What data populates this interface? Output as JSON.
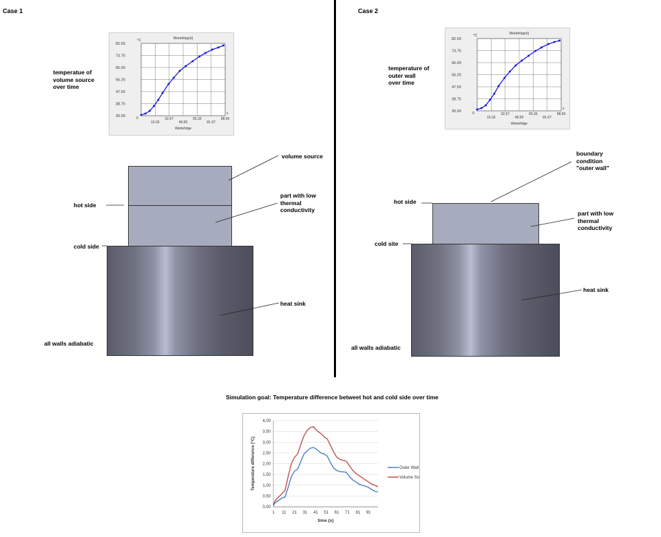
{
  "case1": {
    "title": "Case 1",
    "profile_label": [
      "temperatue of",
      "volume source",
      "over time"
    ],
    "labels": {
      "volume_source": "volume source",
      "low_cond": [
        "part with low",
        "thermal",
        "conductivity"
      ],
      "hot_side": "hot side",
      "cold_side": "cold side",
      "heat_sink": "heat sink",
      "adiabatic": "all walls adiabatic"
    },
    "mini_chart": {
      "unit": "°C",
      "title": "Wertefolge(t)",
      "xlabel": "Wertefolge",
      "yticks": [
        "30.00",
        "38.75",
        "47.50",
        "56.25",
        "65.00",
        "73.75",
        "82.50"
      ],
      "xticks_upper": [
        "32.67",
        "65.33",
        "98.00"
      ],
      "xticks_lower": [
        "16.33",
        "49.00",
        "81.67"
      ],
      "x_zero": "0",
      "x_axis_end": "x"
    }
  },
  "case2": {
    "title": "Case 2",
    "profile_label": [
      "temperature of",
      "outer wall",
      "over time"
    ],
    "labels": {
      "boundary": [
        "boundary",
        "condition",
        "\"outer wall\""
      ],
      "low_cond": [
        "part with low",
        "thermal",
        "conductivity"
      ],
      "hot_side": "hot side",
      "cold_side": "cold site",
      "heat_sink": "heat sink",
      "adiabatic": "all walls adiabatic"
    },
    "mini_chart": {
      "unit": "°C",
      "title": "Wertefolge(t)",
      "xlabel": "Wertefolge",
      "yticks": [
        "30.00",
        "38.75",
        "47.50",
        "56.25",
        "65.00",
        "73.75",
        "82.50"
      ],
      "xticks_upper": [
        "32.67",
        "65.33",
        "98.00"
      ],
      "xticks_lower": [
        "16.33",
        "49.00",
        "81.67"
      ],
      "x_zero": "0",
      "x_axis_end": "x"
    }
  },
  "goal_title": "Simulation goal: Temperature difference betweet hot and cold side over time",
  "colors": {
    "mini_line": "#1a1adb",
    "outer_wall": "#4a7fc0",
    "volume_source": "#c0504d",
    "sink_mid": "#b9bdd2",
    "light_block": "#a7abbe"
  },
  "chart_data": [
    {
      "type": "line",
      "title": "Wertefolge(t)",
      "xlabel": "Wertefolge",
      "ylabel": "°C",
      "xlim": [
        0,
        98
      ],
      "ylim": [
        30,
        82.5
      ],
      "series": [
        {
          "x": [
            0,
            5,
            10,
            15,
            20,
            25,
            32,
            38,
            45,
            52,
            60,
            68,
            75,
            83,
            90,
            96
          ],
          "y": [
            30.5,
            31.5,
            33.5,
            37,
            41.5,
            46.5,
            53,
            57.5,
            62.5,
            66,
            69.5,
            73,
            75.5,
            78,
            79.5,
            81
          ]
        }
      ],
      "grid": true
    },
    {
      "type": "line",
      "title": "Wertefolge(t)",
      "xlabel": "Wertefolge",
      "ylabel": "°C",
      "xlim": [
        0,
        98
      ],
      "ylim": [
        30,
        82.5
      ],
      "series": [
        {
          "x": [
            0,
            5,
            10,
            15,
            20,
            25,
            32,
            38,
            45,
            52,
            60,
            68,
            75,
            83,
            90,
            96
          ],
          "y": [
            31,
            32,
            34,
            38,
            42.5,
            48,
            54,
            58.5,
            63,
            66.5,
            70,
            73.5,
            76,
            78.5,
            80,
            81
          ]
        }
      ],
      "grid": true
    },
    {
      "type": "line",
      "xlabel": "time (s)",
      "ylabel": "Temperature difference (°C)",
      "yticks": [
        "0,00",
        "0,50",
        "1,00",
        "1,50",
        "2,00",
        "2,50",
        "3,00",
        "3,50",
        "4,00"
      ],
      "xticks": [
        "1",
        "11",
        "21",
        "31",
        "41",
        "51",
        "61",
        "71",
        "81",
        "91"
      ],
      "xlim": [
        1,
        100
      ],
      "ylim": [
        0,
        4
      ],
      "legend": "right",
      "grid": true,
      "series": [
        {
          "name": "Outer Wall",
          "x": [
            1,
            3,
            6,
            9,
            12,
            15,
            18,
            21,
            24,
            27,
            30,
            33,
            36,
            39,
            41,
            43,
            46,
            49,
            52,
            55,
            58,
            61,
            64,
            67,
            70,
            73,
            76,
            79,
            82,
            85,
            88,
            91,
            94,
            97,
            100
          ],
          "y": [
            0.05,
            0.2,
            0.3,
            0.4,
            0.45,
            0.9,
            1.4,
            1.65,
            1.75,
            2.1,
            2.45,
            2.6,
            2.72,
            2.75,
            2.7,
            2.62,
            2.5,
            2.45,
            2.35,
            2.05,
            1.8,
            1.68,
            1.63,
            1.62,
            1.6,
            1.4,
            1.25,
            1.15,
            1.05,
            1.0,
            0.95,
            0.9,
            0.8,
            0.72,
            0.68
          ]
        },
        {
          "name": "Volume Source",
          "x": [
            1,
            3,
            6,
            9,
            12,
            15,
            18,
            21,
            24,
            27,
            30,
            33,
            36,
            39,
            41,
            43,
            46,
            49,
            52,
            55,
            58,
            61,
            64,
            67,
            70,
            73,
            76,
            79,
            82,
            85,
            88,
            91,
            94,
            97,
            100
          ],
          "y": [
            0.1,
            0.3,
            0.45,
            0.6,
            0.75,
            1.4,
            2.0,
            2.3,
            2.45,
            2.9,
            3.3,
            3.55,
            3.68,
            3.72,
            3.6,
            3.5,
            3.4,
            3.25,
            3.15,
            2.85,
            2.55,
            2.3,
            2.2,
            2.15,
            2.12,
            1.9,
            1.7,
            1.55,
            1.45,
            1.35,
            1.25,
            1.15,
            1.05,
            1.0,
            0.92
          ]
        }
      ]
    }
  ]
}
